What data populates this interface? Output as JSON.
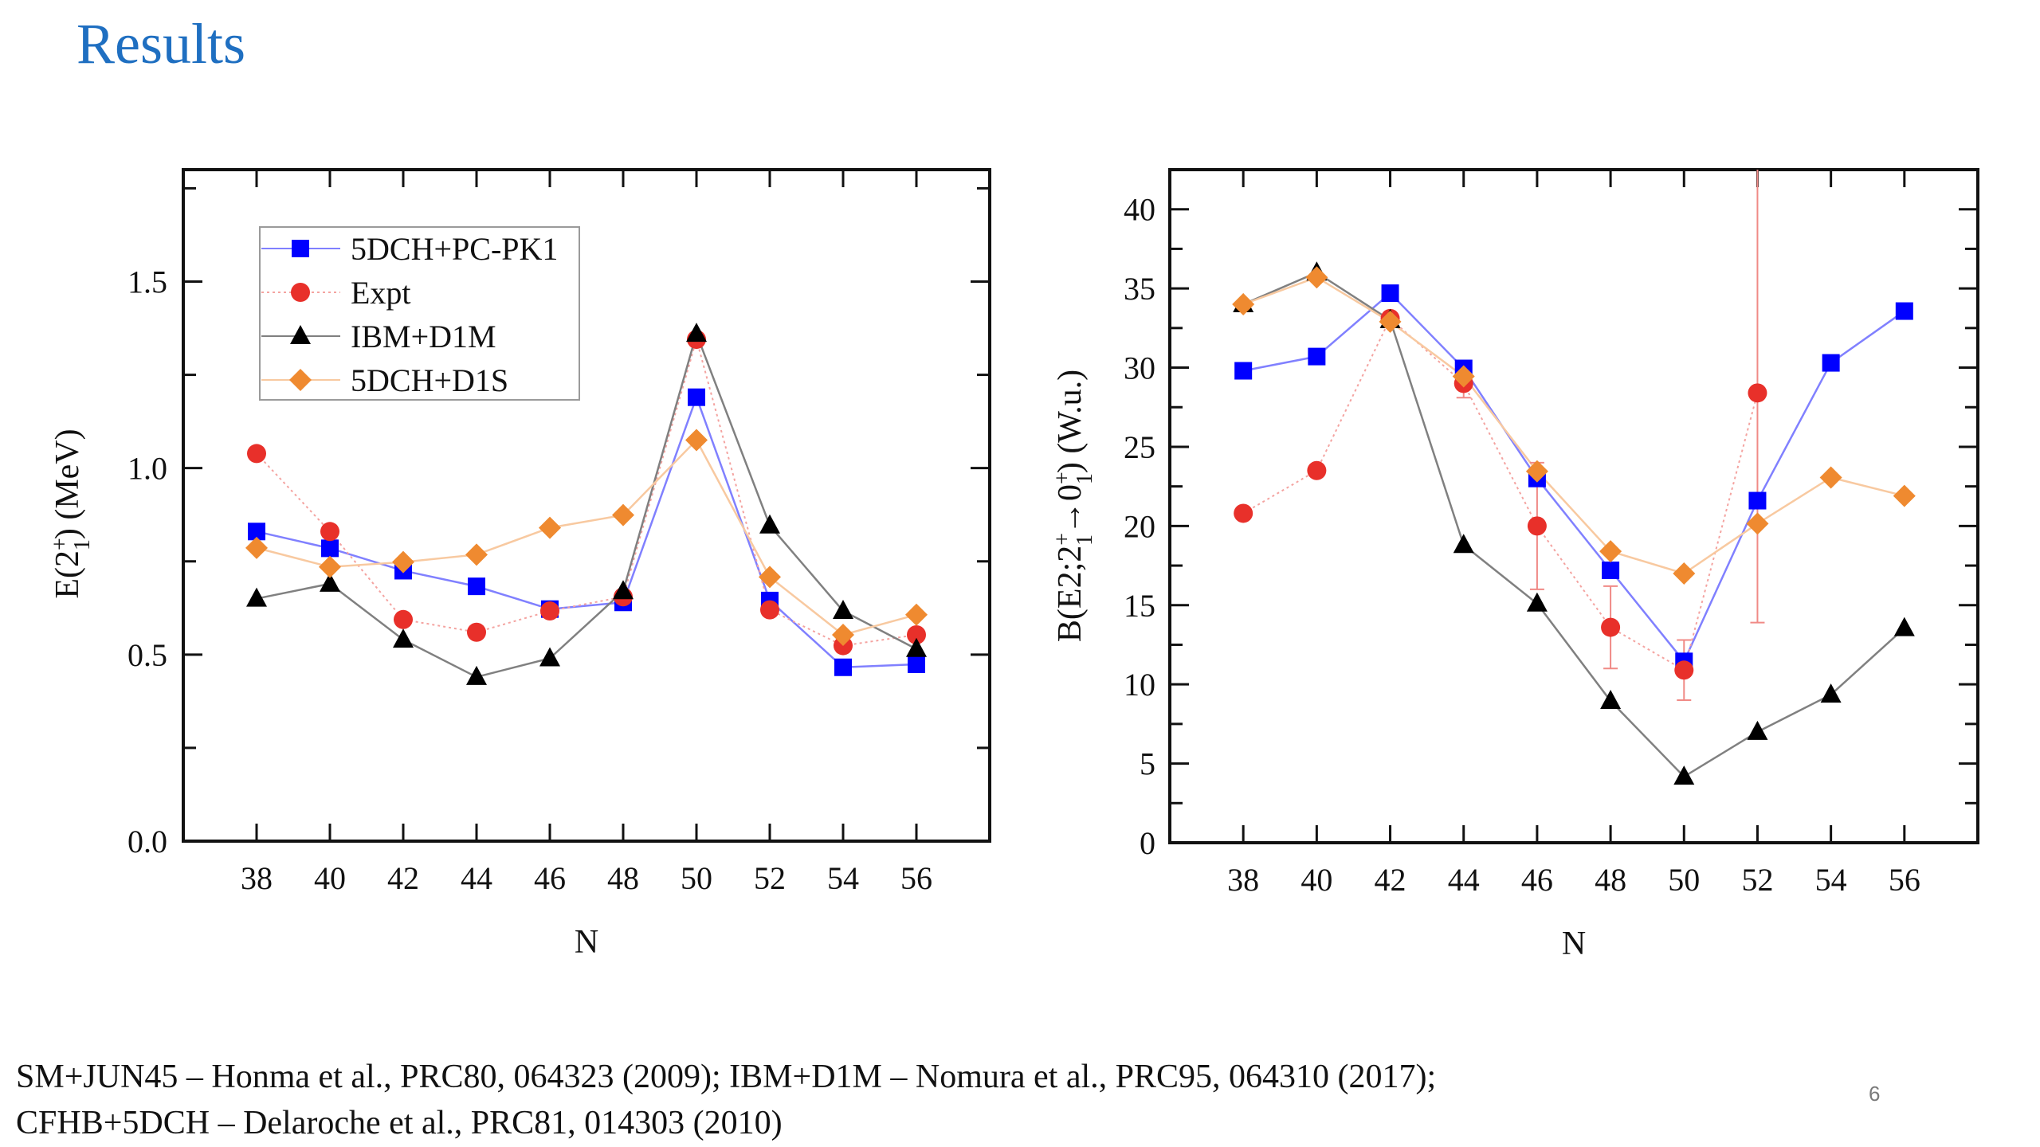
{
  "slide": {
    "title": "Results",
    "page_number": "6",
    "footer_lines": [
      "SM+JUN45 – Honma et al., PRC80, 064323 (2009); IBM+D1M – Nomura et al., PRC95, 064310 (2017);",
      "CFHB+5DCH – Delaroche et al., PRC81, 014303 (2010)"
    ]
  },
  "series_styles": [
    {
      "name": "5DCH+PC-PK1",
      "marker": "square",
      "color": "#0000ff",
      "line_color": "#8080ff",
      "line_style": "solid"
    },
    {
      "name": "Expt",
      "marker": "circle",
      "color": "#e8302a",
      "line_color": "#f4a3a0",
      "line_style": "dotted"
    },
    {
      "name": "IBM+D1M",
      "marker": "triangle",
      "color": "#000000",
      "line_color": "#808080",
      "line_style": "solid"
    },
    {
      "name": "5DCH+D1S",
      "marker": "diamond",
      "color": "#ef8a30",
      "line_color": "#f8c9a0",
      "line_style": "solid"
    }
  ],
  "chart_data": [
    {
      "type": "line",
      "title": "",
      "xlabel": "N",
      "ylabel": "E(2₁⁺) (MeV)",
      "ylabel_parts": {
        "main": "E(2",
        "sup": "+",
        "sub": "1",
        "tail": ") (MeV)"
      },
      "x": [
        38,
        40,
        42,
        44,
        46,
        48,
        50,
        52,
        54,
        56
      ],
      "xlim": [
        36,
        58
      ],
      "ylim": [
        0,
        1.8
      ],
      "xticks": [
        38,
        40,
        42,
        44,
        46,
        48,
        50,
        52,
        54,
        56
      ],
      "yticks": [
        0.0,
        0.5,
        1.0,
        1.5
      ],
      "ytick_labels": [
        "0.0",
        "0.5",
        "1.0",
        "1.5"
      ],
      "yminor": [
        0.25,
        0.75,
        1.25,
        1.75
      ],
      "grid": false,
      "legend": {
        "placement": "top-left",
        "entries": [
          "5DCH+PC-PK1",
          "Expt",
          "IBM+D1M",
          "5DCH+D1S"
        ]
      },
      "series": [
        {
          "name": "5DCH+PC-PK1",
          "values": [
            0.83,
            0.785,
            0.725,
            0.683,
            0.622,
            0.64,
            1.19,
            0.645,
            0.466,
            0.474
          ]
        },
        {
          "name": "Expt",
          "values": [
            1.039,
            0.83,
            0.594,
            0.56,
            0.617,
            0.655,
            1.345,
            0.62,
            0.524,
            0.553
          ]
        },
        {
          "name": "IBM+D1M",
          "values": [
            0.65,
            0.69,
            0.54,
            0.44,
            0.49,
            0.67,
            1.36,
            0.846,
            0.617,
            0.515
          ]
        },
        {
          "name": "5DCH+D1S",
          "values": [
            0.786,
            0.735,
            0.748,
            0.768,
            0.84,
            0.874,
            1.075,
            0.708,
            0.553,
            0.607
          ]
        }
      ]
    },
    {
      "type": "line",
      "title": "",
      "xlabel": "N",
      "ylabel": "B(E2;2₁⁺→0₁⁺) (W.u.)",
      "ylabel_parts": {
        "a": "B(E2;2",
        "sup1": "+",
        "sub1": "1",
        "b": "→0",
        "sup2": "+",
        "sub2": "1",
        "c": ") (W.u.)"
      },
      "x": [
        38,
        40,
        42,
        44,
        46,
        48,
        50,
        52,
        54,
        56
      ],
      "xlim": [
        36,
        58
      ],
      "ylim": [
        0,
        42.5
      ],
      "xticks": [
        38,
        40,
        42,
        44,
        46,
        48,
        50,
        52,
        54,
        56
      ],
      "yticks": [
        0,
        5,
        10,
        15,
        20,
        25,
        30,
        35,
        40
      ],
      "ytick_labels": [
        "0",
        "5",
        "10",
        "15",
        "20",
        "25",
        "30",
        "35",
        "40"
      ],
      "yminor": [
        2.5,
        7.5,
        12.5,
        17.5,
        22.5,
        27.5,
        32.5,
        37.5
      ],
      "grid": false,
      "legend": null,
      "series": [
        {
          "name": "5DCH+PC-PK1",
          "values": [
            29.8,
            30.7,
            34.7,
            29.95,
            23.0,
            17.2,
            11.45,
            21.6,
            30.3,
            33.57
          ]
        },
        {
          "name": "Expt",
          "values": [
            20.8,
            23.5,
            33.1,
            29.0,
            20.0,
            13.6,
            10.9,
            28.4,
            null,
            null
          ],
          "errors": [
            null,
            null,
            null,
            0.9,
            4.0,
            2.6,
            1.9,
            14.5,
            null,
            null
          ]
        },
        {
          "name": "IBM+D1M",
          "values": [
            34.0,
            36.0,
            33.0,
            18.8,
            15.1,
            8.95,
            4.17,
            7.0,
            9.35,
            13.55
          ]
        },
        {
          "name": "5DCH+D1S",
          "values": [
            34.0,
            35.7,
            32.9,
            29.45,
            23.45,
            18.4,
            17.0,
            20.15,
            23.06,
            21.9
          ]
        }
      ]
    }
  ]
}
